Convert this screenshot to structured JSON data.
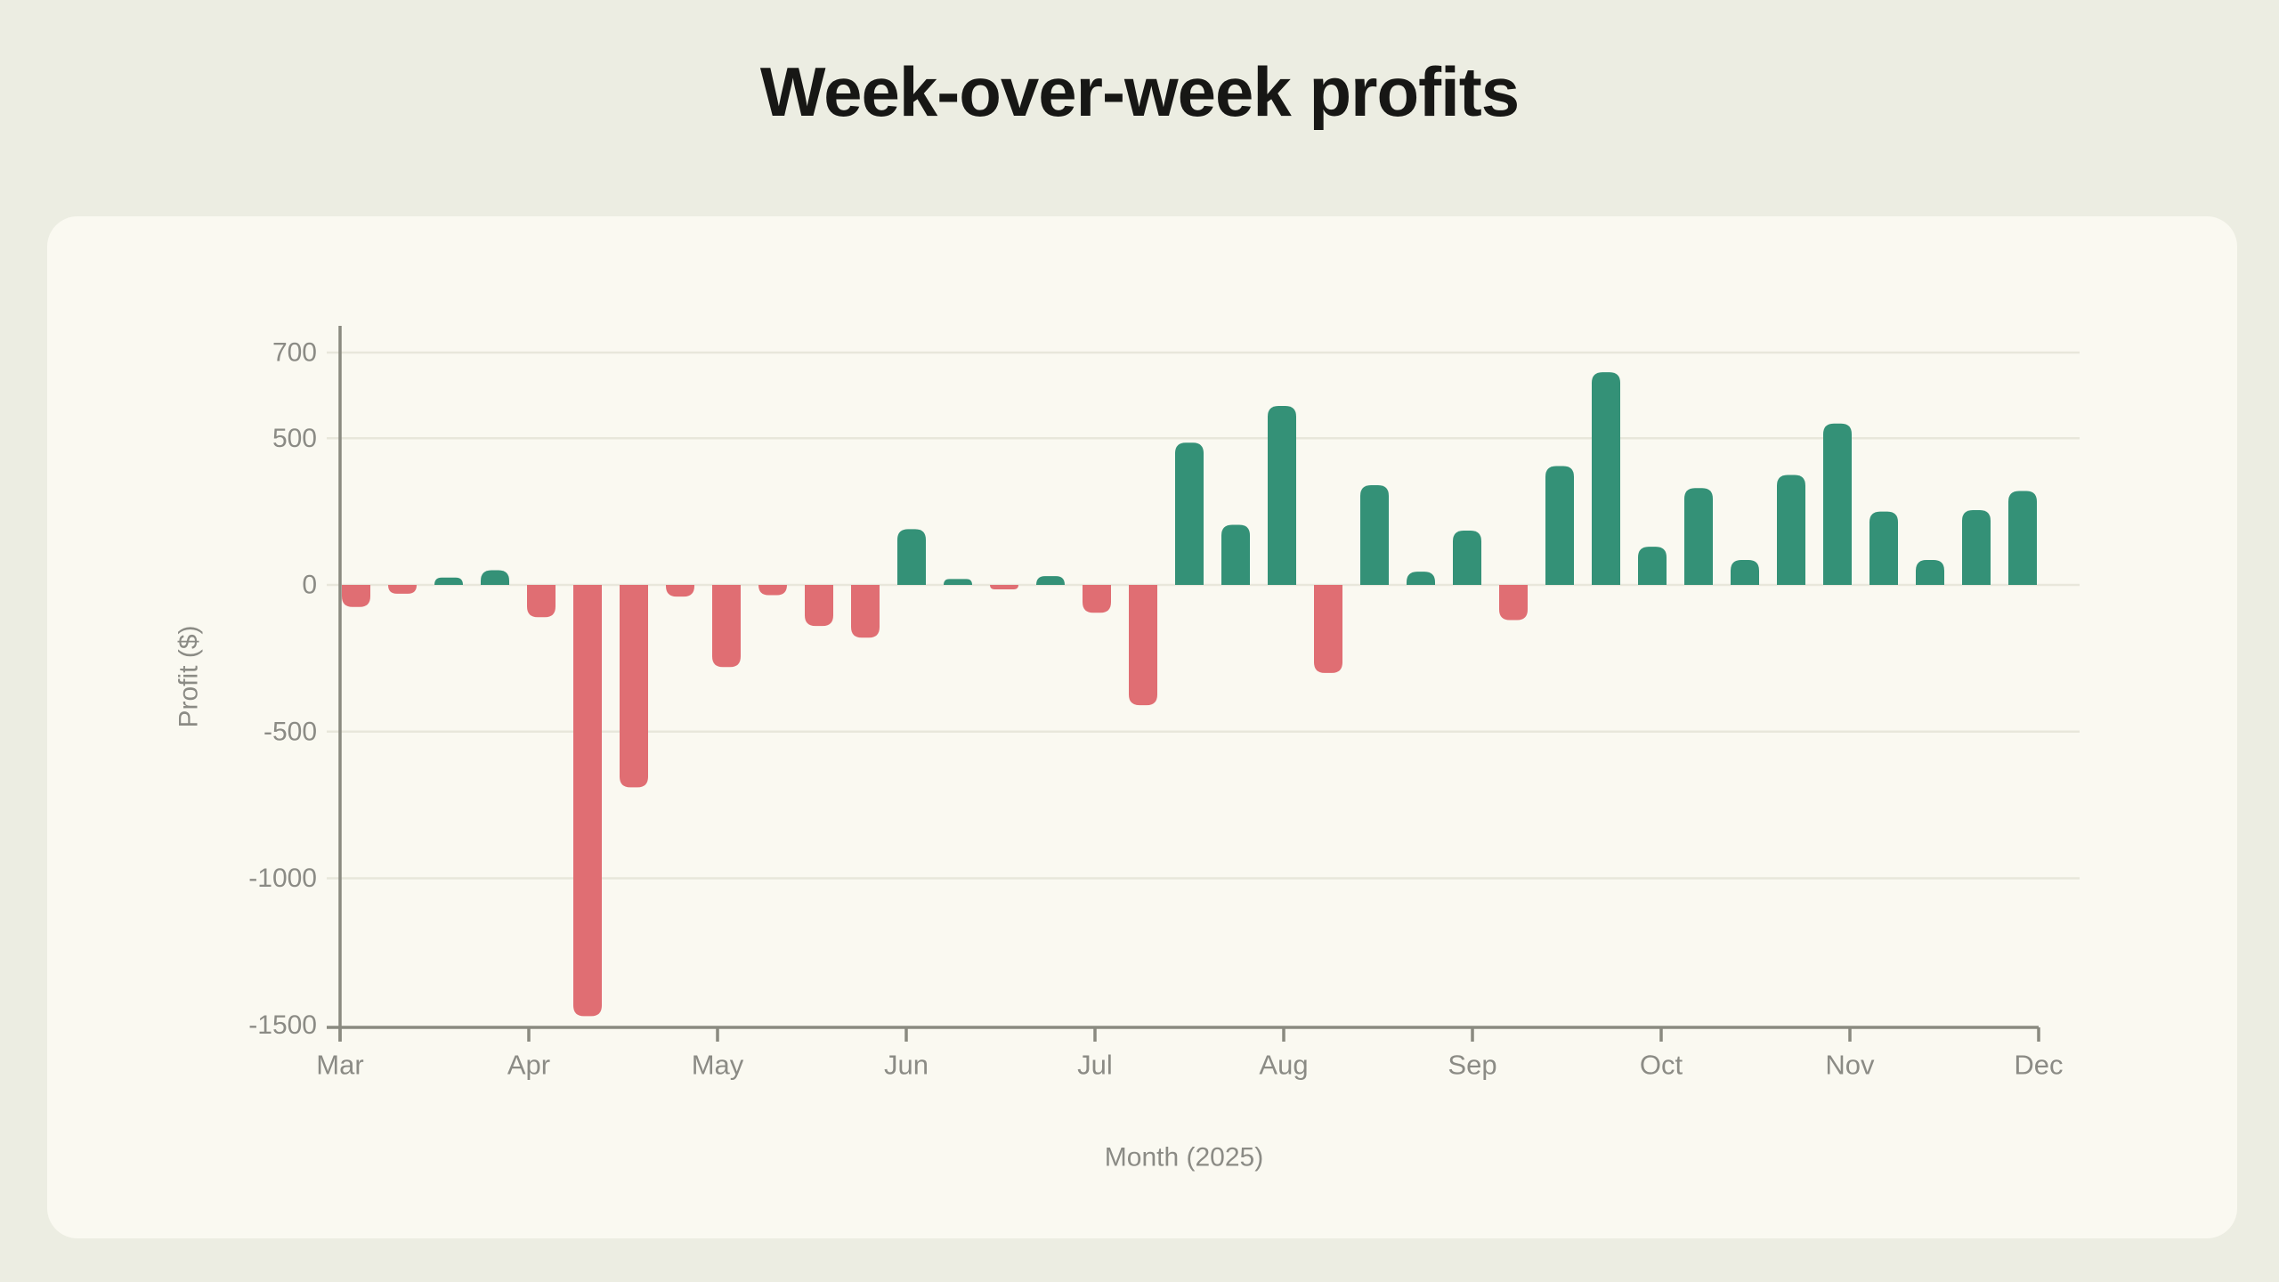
{
  "chart_data": {
    "type": "bar",
    "title": "Week-over-week profits",
    "xlabel": "Month (2025)",
    "ylabel": "Profit ($)",
    "months": [
      "Mar",
      "Apr",
      "May",
      "Jun",
      "Jul",
      "Aug",
      "Sep",
      "Oct",
      "Nov",
      "Dec"
    ],
    "yticks": [
      700,
      500,
      0,
      -500,
      -1000,
      -1500
    ],
    "ylim": [
      -1560,
      790
    ],
    "grid": "horizontal",
    "legend": "none",
    "series": [
      {
        "month": "Mar",
        "week": 1,
        "value": -75
      },
      {
        "month": "Mar",
        "week": 2,
        "value": -30
      },
      {
        "month": "Mar",
        "week": 3,
        "value": 25
      },
      {
        "month": "Mar",
        "week": 4,
        "value": 50
      },
      {
        "month": "Apr",
        "week": 1,
        "value": -110
      },
      {
        "month": "Apr",
        "week": 2,
        "value": -1470
      },
      {
        "month": "Apr",
        "week": 3,
        "value": -690
      },
      {
        "month": "Apr",
        "week": 4,
        "value": -40
      },
      {
        "month": "May",
        "week": 1,
        "value": -280
      },
      {
        "month": "May",
        "week": 2,
        "value": -35
      },
      {
        "month": "May",
        "week": 3,
        "value": -140
      },
      {
        "month": "May",
        "week": 4,
        "value": -180
      },
      {
        "month": "Jun",
        "week": 1,
        "value": 190
      },
      {
        "month": "Jun",
        "week": 2,
        "value": 20
      },
      {
        "month": "Jun",
        "week": 3,
        "value": -15
      },
      {
        "month": "Jun",
        "week": 4,
        "value": 30
      },
      {
        "month": "Jul",
        "week": 1,
        "value": -95
      },
      {
        "month": "Jul",
        "week": 2,
        "value": -410
      },
      {
        "month": "Jul",
        "week": 3,
        "value": 485
      },
      {
        "month": "Jul",
        "week": 4,
        "value": 205
      },
      {
        "month": "Aug",
        "week": 1,
        "value": 610
      },
      {
        "month": "Aug",
        "week": 2,
        "value": -300
      },
      {
        "month": "Aug",
        "week": 3,
        "value": 340
      },
      {
        "month": "Aug",
        "week": 4,
        "value": 45
      },
      {
        "month": "Sep",
        "week": 1,
        "value": 185
      },
      {
        "month": "Sep",
        "week": 2,
        "value": -120
      },
      {
        "month": "Sep",
        "week": 3,
        "value": 405
      },
      {
        "month": "Sep",
        "week": 4,
        "value": 725
      },
      {
        "month": "Oct",
        "week": 1,
        "value": 130
      },
      {
        "month": "Oct",
        "week": 2,
        "value": 330
      },
      {
        "month": "Oct",
        "week": 3,
        "value": 85
      },
      {
        "month": "Oct",
        "week": 4,
        "value": 375
      },
      {
        "month": "Nov",
        "week": 1,
        "value": 550
      },
      {
        "month": "Nov",
        "week": 2,
        "value": 250
      },
      {
        "month": "Nov",
        "week": 3,
        "value": 85
      },
      {
        "month": "Nov",
        "week": 4,
        "value": 255
      },
      {
        "month": "Dec",
        "week": 1,
        "value": 320
      }
    ],
    "colors": {
      "positive": "#349177",
      "negative": "#E06E73"
    }
  },
  "theme": {
    "page_bg": "#ECEDE2",
    "card_bg": "#FAF9F1",
    "gridline": "#E8E7DB",
    "axis": "#8A8A80",
    "tick_text": "#8B8B85",
    "title_text": "#171715"
  }
}
